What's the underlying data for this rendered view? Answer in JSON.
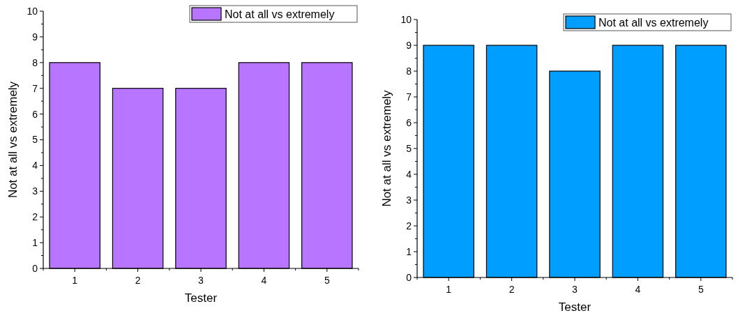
{
  "chart_data": [
    {
      "type": "bar",
      "xlabel": "Tester",
      "ylabel": "Not at all vs extremely",
      "categories": [
        "1",
        "2",
        "3",
        "4",
        "5"
      ],
      "series": [
        {
          "name": "Not at all vs extremely",
          "color": "#b875ff",
          "values": [
            8,
            7,
            7,
            8,
            8
          ]
        }
      ],
      "ylim": [
        0,
        10
      ],
      "yticks": [
        0,
        1,
        2,
        3,
        4,
        5,
        6,
        7,
        8,
        9,
        10
      ],
      "legend": "top right"
    },
    {
      "type": "bar",
      "xlabel": "Tester",
      "ylabel": "Not at all vs extremely",
      "categories": [
        "1",
        "2",
        "3",
        "4",
        "5"
      ],
      "series": [
        {
          "name": "Not at all vs extremely",
          "color": "#009fff",
          "values": [
            9,
            9,
            8,
            9,
            9
          ]
        }
      ],
      "ylim": [
        0,
        10
      ],
      "yticks": [
        0,
        1,
        2,
        3,
        4,
        5,
        6,
        7,
        8,
        9,
        10
      ],
      "legend": "top right"
    }
  ]
}
